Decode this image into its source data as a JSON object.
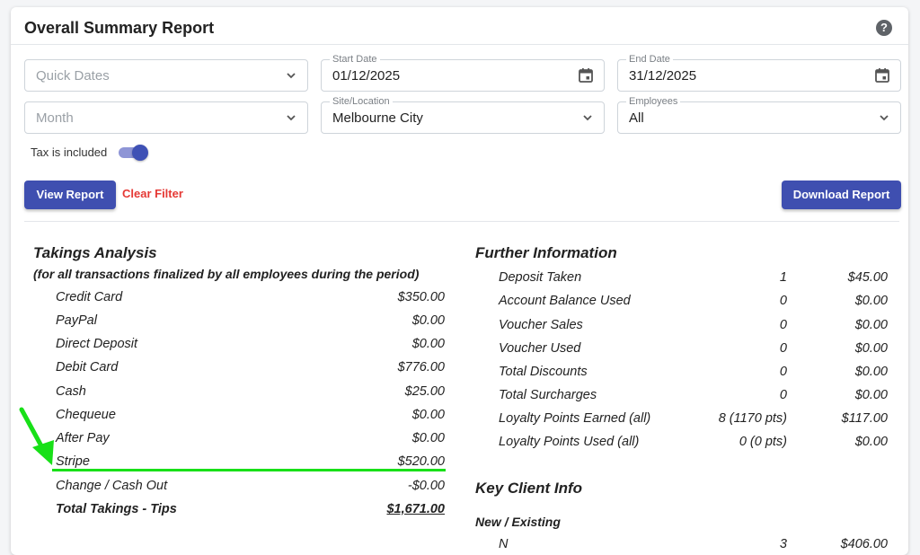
{
  "header": {
    "title": "Overall Summary Report",
    "help_icon": "question-circle-icon"
  },
  "filters": {
    "quick_dates": {
      "placeholder": "Quick Dates"
    },
    "start_date": {
      "label": "Start Date",
      "value": "01/12/2025"
    },
    "end_date": {
      "label": "End Date",
      "value": "31/12/2025"
    },
    "month": {
      "placeholder": "Month"
    },
    "site": {
      "label": "Site/Location",
      "value": "Melbourne City"
    },
    "employees": {
      "label": "Employees",
      "value": "All"
    },
    "tax_toggle": {
      "label": "Tax is included",
      "on": true
    },
    "view_report": "View Report",
    "clear_filter": "Clear Filter",
    "download_report": "Download Report"
  },
  "takings": {
    "title": "Takings Analysis",
    "subtitle": "(for all transactions finalized by all employees during the period)",
    "rows": [
      {
        "label": "Credit Card",
        "value": "$350.00"
      },
      {
        "label": "PayPal",
        "value": "$0.00"
      },
      {
        "label": "Direct Deposit",
        "value": "$0.00"
      },
      {
        "label": "Debit Card",
        "value": "$776.00"
      },
      {
        "label": "Cash",
        "value": "$25.00"
      },
      {
        "label": "Chequeue",
        "value": "$0.00"
      },
      {
        "label": "After Pay",
        "value": "$0.00"
      },
      {
        "label": "Stripe",
        "value": "$520.00"
      },
      {
        "label": "Change / Cash Out",
        "value": "-$0.00"
      }
    ],
    "total": {
      "label": "Total Takings - Tips",
      "value": "$1,671.00"
    }
  },
  "further": {
    "title": "Further Information",
    "rows": [
      {
        "label": "Deposit Taken",
        "count": "1",
        "value": "$45.00"
      },
      {
        "label": "Account Balance Used",
        "count": "0",
        "value": "$0.00"
      },
      {
        "label": "Voucher Sales",
        "count": "0",
        "value": "$0.00"
      },
      {
        "label": "Voucher Used",
        "count": "0",
        "value": "$0.00"
      },
      {
        "label": "Total Discounts",
        "count": "0",
        "value": "$0.00"
      },
      {
        "label": "Total Surcharges",
        "count": "0",
        "value": "$0.00"
      },
      {
        "label": "Loyalty Points Earned (all)",
        "count": "8 (1170 pts)",
        "value": "$117.00"
      },
      {
        "label": "Loyalty Points Used (all)",
        "count": "0 (0 pts)",
        "value": "$0.00"
      }
    ]
  },
  "key_client": {
    "title": "Key Client Info",
    "subtitle": "New / Existing",
    "partial_row": {
      "label": "N",
      "count": "3",
      "value": "$406.00"
    }
  },
  "annotation": {
    "arrow_color": "#18e018",
    "underline_color": "#18e018"
  },
  "colors": {
    "primary": "#3f4fb0",
    "danger": "#e53935"
  }
}
